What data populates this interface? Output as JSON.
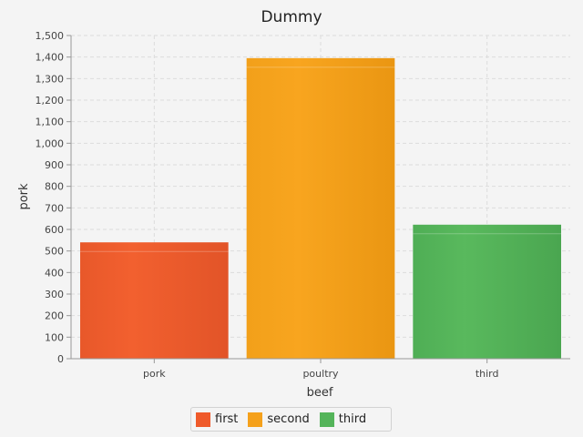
{
  "chart_data": {
    "type": "bar",
    "title": "Dummy",
    "xlabel": "beef",
    "ylabel": "pork",
    "categories": [
      "pork",
      "poultry",
      "third"
    ],
    "series": [
      {
        "name": "first",
        "values": [
          540,
          null,
          null
        ],
        "color": "#ef5a2a"
      },
      {
        "name": "second",
        "values": [
          null,
          1395,
          null
        ],
        "color": "#f5a11b"
      },
      {
        "name": "third",
        "values": [
          null,
          null,
          622
        ],
        "color": "#54b45a"
      }
    ],
    "ylim": [
      0,
      1500
    ],
    "ytick_step": 100,
    "yticks": [
      "0",
      "100",
      "200",
      "300",
      "400",
      "500",
      "600",
      "700",
      "800",
      "900",
      "1,000",
      "1,100",
      "1,200",
      "1,300",
      "1,400",
      "1,500"
    ],
    "grid": true,
    "legend_position": "bottom-center"
  }
}
